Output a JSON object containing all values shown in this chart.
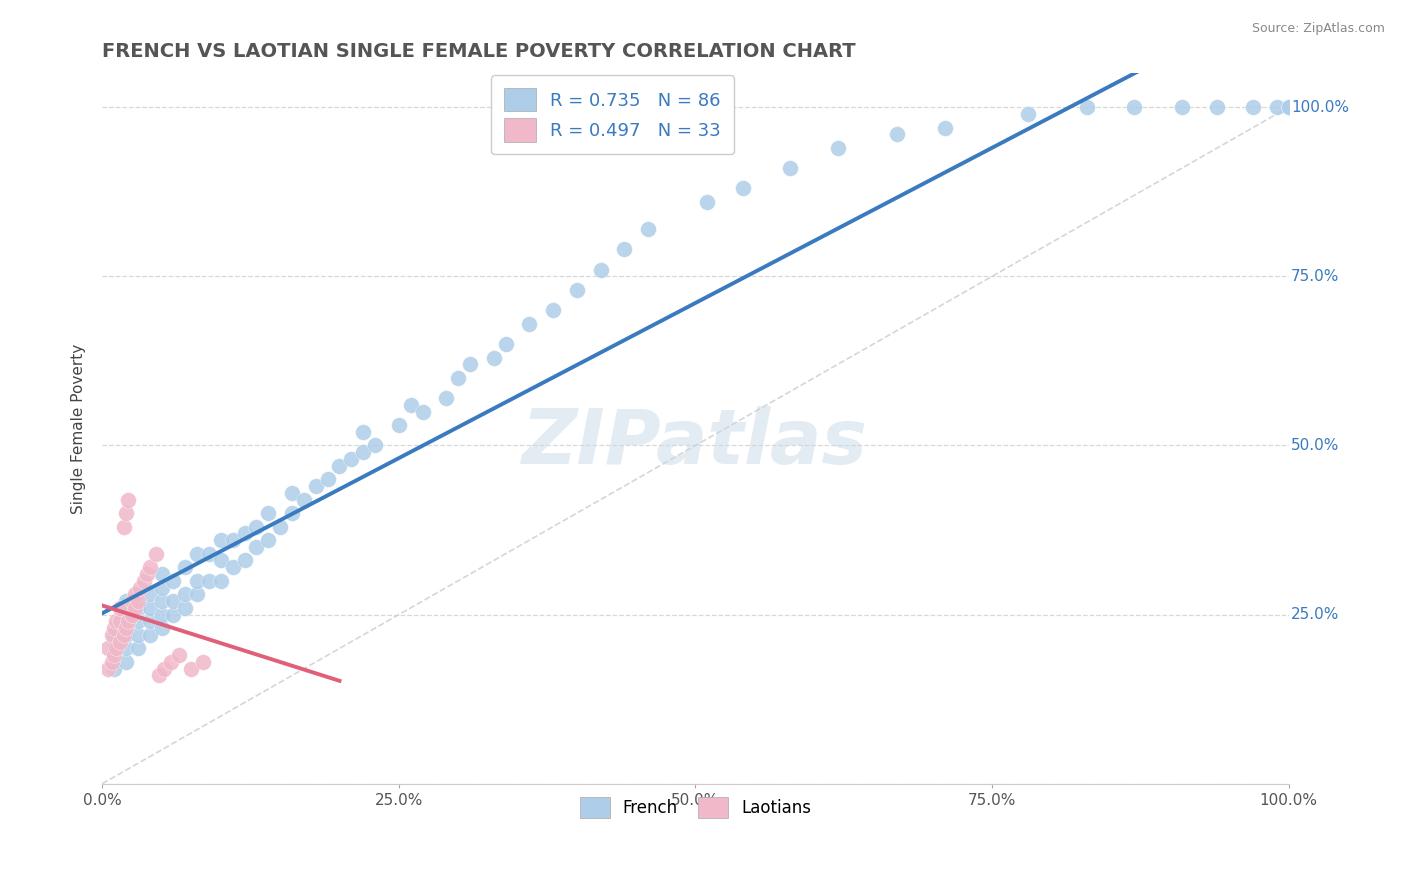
{
  "title": "FRENCH VS LAOTIAN SINGLE FEMALE POVERTY CORRELATION CHART",
  "source": "Source: ZipAtlas.com",
  "ylabel": "Single Female Poverty",
  "french_R": 0.735,
  "french_N": 86,
  "laotian_R": 0.497,
  "laotian_N": 33,
  "french_color": "#aecde8",
  "laotian_color": "#f0b8c8",
  "french_line_color": "#3a7abf",
  "laotian_line_color": "#e0607a",
  "ref_line_color": "#cccccc",
  "grid_color": "#d8d8d8",
  "title_color": "#555555",
  "legend_R_color": "#3a7abf",
  "watermark": "ZIPatlas",
  "french_x": [
    0.01,
    0.01,
    0.01,
    0.02,
    0.02,
    0.02,
    0.02,
    0.02,
    0.02,
    0.02,
    0.03,
    0.03,
    0.03,
    0.03,
    0.03,
    0.04,
    0.04,
    0.04,
    0.04,
    0.05,
    0.05,
    0.05,
    0.05,
    0.05,
    0.06,
    0.06,
    0.06,
    0.07,
    0.07,
    0.07,
    0.08,
    0.08,
    0.08,
    0.09,
    0.09,
    0.1,
    0.1,
    0.1,
    0.11,
    0.11,
    0.12,
    0.12,
    0.13,
    0.13,
    0.14,
    0.14,
    0.15,
    0.16,
    0.16,
    0.17,
    0.18,
    0.19,
    0.2,
    0.21,
    0.22,
    0.22,
    0.23,
    0.25,
    0.26,
    0.27,
    0.29,
    0.3,
    0.31,
    0.33,
    0.34,
    0.36,
    0.38,
    0.4,
    0.42,
    0.44,
    0.46,
    0.51,
    0.54,
    0.58,
    0.62,
    0.67,
    0.71,
    0.78,
    0.83,
    0.87,
    0.91,
    0.94,
    0.97,
    0.99,
    1.0,
    1.0
  ],
  "french_y": [
    0.17,
    0.2,
    0.22,
    0.18,
    0.2,
    0.22,
    0.24,
    0.25,
    0.26,
    0.27,
    0.2,
    0.22,
    0.24,
    0.26,
    0.28,
    0.22,
    0.24,
    0.26,
    0.28,
    0.23,
    0.25,
    0.27,
    0.29,
    0.31,
    0.25,
    0.27,
    0.3,
    0.26,
    0.28,
    0.32,
    0.28,
    0.3,
    0.34,
    0.3,
    0.34,
    0.3,
    0.33,
    0.36,
    0.32,
    0.36,
    0.33,
    0.37,
    0.35,
    0.38,
    0.36,
    0.4,
    0.38,
    0.4,
    0.43,
    0.42,
    0.44,
    0.45,
    0.47,
    0.48,
    0.49,
    0.52,
    0.5,
    0.53,
    0.56,
    0.55,
    0.57,
    0.6,
    0.62,
    0.63,
    0.65,
    0.68,
    0.7,
    0.73,
    0.76,
    0.79,
    0.82,
    0.86,
    0.88,
    0.91,
    0.94,
    0.96,
    0.97,
    0.99,
    1.0,
    1.0,
    1.0,
    1.0,
    1.0,
    1.0,
    1.0,
    1.0
  ],
  "laotian_x": [
    0.005,
    0.005,
    0.008,
    0.008,
    0.01,
    0.01,
    0.012,
    0.012,
    0.015,
    0.015,
    0.015,
    0.018,
    0.018,
    0.02,
    0.02,
    0.022,
    0.022,
    0.025,
    0.025,
    0.028,
    0.028,
    0.03,
    0.032,
    0.035,
    0.038,
    0.04,
    0.045,
    0.048,
    0.052,
    0.058,
    0.065,
    0.075,
    0.085
  ],
  "laotian_y": [
    0.17,
    0.2,
    0.18,
    0.22,
    0.19,
    0.23,
    0.2,
    0.24,
    0.21,
    0.24,
    0.26,
    0.22,
    0.38,
    0.23,
    0.4,
    0.24,
    0.42,
    0.25,
    0.27,
    0.26,
    0.28,
    0.27,
    0.29,
    0.3,
    0.31,
    0.32,
    0.34,
    0.16,
    0.17,
    0.18,
    0.19,
    0.17,
    0.18
  ],
  "xlim": [
    0,
    1.0
  ],
  "ylim": [
    0,
    1.05
  ]
}
